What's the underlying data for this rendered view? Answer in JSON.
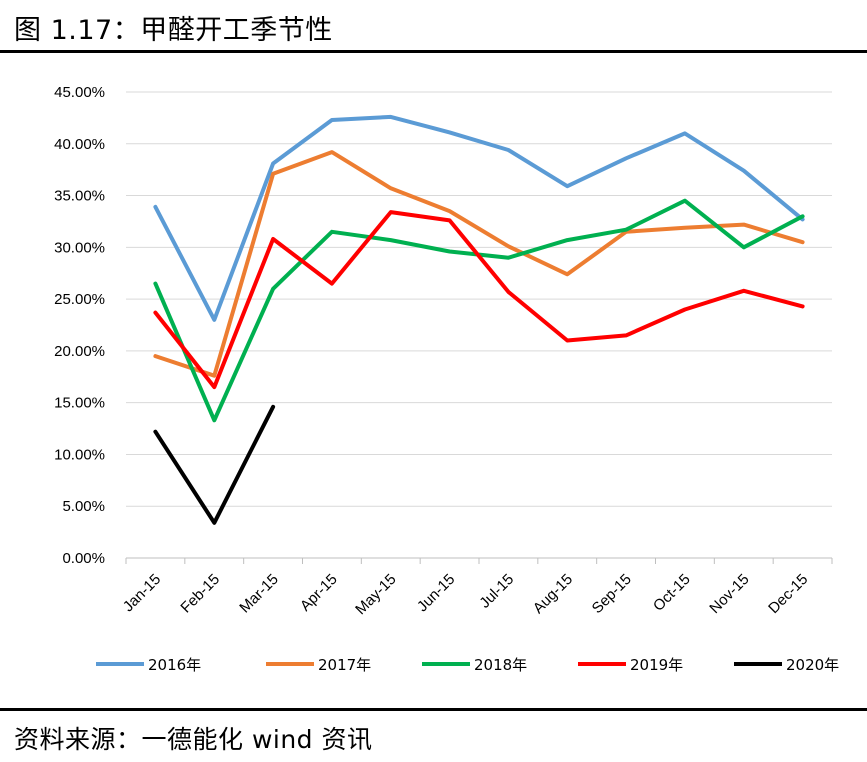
{
  "figure": {
    "title": "图 1.17：甲醛开工季节性",
    "source": "资料来源：一德能化  wind 资讯"
  },
  "chart_data": {
    "type": "line",
    "title": "",
    "xlabel": "",
    "ylabel": "",
    "categories": [
      "Jan-15",
      "Feb-15",
      "Mar-15",
      "Apr-15",
      "May-15",
      "Jun-15",
      "Jul-15",
      "Aug-15",
      "Sep-15",
      "Oct-15",
      "Nov-15",
      "Dec-15"
    ],
    "ylim": [
      0,
      0.45
    ],
    "yticks": [
      "0.00%",
      "5.00%",
      "10.00%",
      "15.00%",
      "20.00%",
      "25.00%",
      "30.00%",
      "35.00%",
      "40.00%",
      "45.00%"
    ],
    "grid": true,
    "legend_position": "bottom",
    "series": [
      {
        "name": "2016年",
        "color": "#5B9BD5",
        "values": [
          0.339,
          0.23,
          0.381,
          0.423,
          0.426,
          0.411,
          0.394,
          0.359,
          0.386,
          0.41,
          0.374,
          0.327
        ]
      },
      {
        "name": "2017年",
        "color": "#ED7D31",
        "values": [
          0.195,
          0.176,
          0.371,
          0.392,
          0.357,
          0.335,
          0.301,
          0.274,
          0.315,
          0.319,
          0.322,
          0.305
        ]
      },
      {
        "name": "2018年",
        "color": "#00B050",
        "values": [
          0.265,
          0.133,
          0.26,
          0.315,
          0.307,
          0.296,
          0.29,
          0.307,
          0.317,
          0.345,
          0.3,
          0.33
        ]
      },
      {
        "name": "2019年",
        "color": "#FF0000",
        "values": [
          0.237,
          0.165,
          0.308,
          0.265,
          0.334,
          0.326,
          0.257,
          0.21,
          0.215,
          0.24,
          0.258,
          0.243
        ]
      },
      {
        "name": "2020年",
        "color": "#000000",
        "values": [
          0.122,
          0.034,
          0.146,
          null,
          null,
          null,
          null,
          null,
          null,
          null,
          null,
          null
        ]
      }
    ]
  }
}
